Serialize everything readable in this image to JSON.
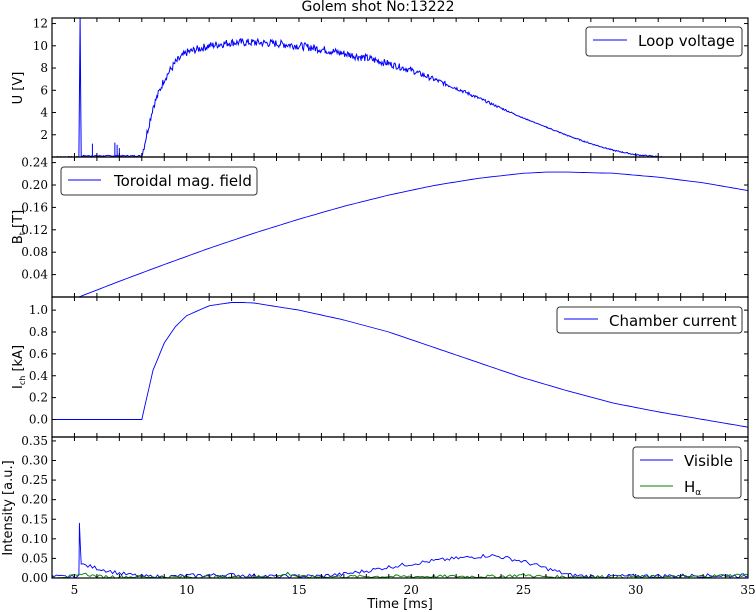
{
  "title": "Golem shot No:13222",
  "xlabel": "Time [ms]",
  "colors": {
    "blue": "#0000ff",
    "green": "#008000",
    "axis": "#000000"
  },
  "chart_data": [
    {
      "type": "line",
      "title": "Golem shot No:13222",
      "ylabel": "U [V]",
      "xlabel": "Time [ms]",
      "xlim": [
        4,
        35
      ],
      "ylim": [
        0,
        12.5
      ],
      "yticks": [
        2,
        4,
        6,
        8,
        10,
        12
      ],
      "legend": {
        "position": "upper right",
        "entries": [
          "Loop voltage"
        ]
      },
      "series": [
        {
          "name": "Loop voltage",
          "color": "#0000ff",
          "x": [
            4,
            5.2,
            5.25,
            5.3,
            6,
            7,
            8.0,
            8.5,
            9,
            9.5,
            10,
            11,
            12,
            13,
            14,
            15,
            16,
            17,
            18,
            19,
            20,
            21,
            22,
            23,
            24,
            25,
            26,
            27,
            28,
            29,
            30,
            31.2
          ],
          "y": [
            0,
            0,
            12.5,
            0.1,
            0.1,
            0.1,
            0.1,
            4.5,
            7.0,
            8.5,
            9.4,
            10.0,
            10.3,
            10.3,
            10.2,
            10.0,
            9.7,
            9.3,
            8.9,
            8.4,
            7.8,
            7.0,
            6.2,
            5.3,
            4.4,
            3.5,
            2.7,
            1.9,
            1.2,
            0.6,
            0.2,
            0.0
          ]
        }
      ]
    },
    {
      "type": "line",
      "ylabel": "B_t [T]",
      "xlim": [
        4,
        35
      ],
      "ylim": [
        0,
        0.25
      ],
      "yticks": [
        0.04,
        0.08,
        0.12,
        0.16,
        0.2,
        0.24
      ],
      "legend": {
        "position": "upper left",
        "entries": [
          "Toroidal mag. field"
        ]
      },
      "series": [
        {
          "name": "Toroidal mag. field",
          "color": "#0000ff",
          "x": [
            5.2,
            7,
            9,
            11,
            13,
            15,
            17,
            19,
            21,
            23,
            25,
            26,
            27,
            29,
            31,
            33,
            35
          ],
          "y": [
            0.0,
            0.028,
            0.058,
            0.087,
            0.114,
            0.139,
            0.162,
            0.182,
            0.199,
            0.212,
            0.221,
            0.223,
            0.223,
            0.221,
            0.214,
            0.204,
            0.19
          ]
        }
      ]
    },
    {
      "type": "line",
      "ylabel": "I_ch [kA]",
      "xlim": [
        4,
        35
      ],
      "ylim": [
        -0.16,
        1.12
      ],
      "yticks": [
        0.0,
        0.2,
        0.4,
        0.6,
        0.8,
        1.0
      ],
      "legend": {
        "position": "upper right",
        "entries": [
          "Chamber current"
        ]
      },
      "series": [
        {
          "name": "Chamber current",
          "color": "#0000ff",
          "x": [
            4,
            8.0,
            8.5,
            9,
            9.5,
            10,
            11,
            12,
            12.5,
            13,
            15,
            17,
            19,
            21,
            23,
            25,
            27,
            29,
            31,
            33,
            35
          ],
          "y": [
            0.0,
            0.0,
            0.45,
            0.7,
            0.85,
            0.95,
            1.04,
            1.07,
            1.07,
            1.065,
            1.0,
            0.91,
            0.8,
            0.66,
            0.52,
            0.38,
            0.26,
            0.15,
            0.07,
            0.0,
            -0.07
          ]
        }
      ]
    },
    {
      "type": "line",
      "ylabel": "Intensity [a.u.]",
      "xlabel": "Time [ms]",
      "xlim": [
        4,
        35
      ],
      "ylim": [
        0,
        0.36
      ],
      "xticks": [
        5,
        10,
        15,
        20,
        25,
        30,
        35
      ],
      "yticks": [
        0.0,
        0.05,
        0.1,
        0.15,
        0.2,
        0.25,
        0.3,
        0.35
      ],
      "legend": {
        "position": "upper right",
        "entries": [
          "Visible",
          "H_alpha"
        ]
      },
      "series": [
        {
          "name": "Visible",
          "color": "#0000ff",
          "x": [
            4,
            5.2,
            5.22,
            5.3,
            6,
            7,
            8,
            9,
            10,
            12,
            14,
            16,
            17,
            18,
            19,
            20,
            21,
            22,
            23,
            23.5,
            24,
            25,
            26,
            27,
            28,
            30,
            32,
            35
          ],
          "y": [
            0.003,
            0.003,
            0.145,
            0.035,
            0.025,
            0.012,
            0.004,
            0.003,
            0.006,
            0.008,
            0.004,
            0.005,
            0.01,
            0.018,
            0.028,
            0.036,
            0.044,
            0.05,
            0.055,
            0.058,
            0.054,
            0.042,
            0.025,
            0.008,
            0.004,
            0.005,
            0.006,
            0.006
          ]
        },
        {
          "name": "H_alpha",
          "color": "#008000",
          "x": [
            4,
            5.2,
            5.3,
            6,
            8,
            10,
            12,
            14,
            14.5,
            15,
            18,
            20,
            22,
            24,
            25,
            26,
            28,
            30,
            32,
            35
          ],
          "y": [
            0.003,
            0.005,
            0.012,
            0.004,
            0.003,
            0.003,
            0.003,
            0.003,
            0.012,
            0.003,
            0.004,
            0.004,
            0.004,
            0.004,
            0.008,
            0.003,
            0.003,
            0.003,
            0.003,
            0.008
          ]
        }
      ]
    }
  ],
  "panels": [
    {
      "ylabel": "U [V]",
      "ytick_labels": [
        "2",
        "4",
        "6",
        "8",
        "10",
        "12"
      ],
      "legend": [
        "Loop voltage"
      ]
    },
    {
      "ylabel_main": "B",
      "ylabel_sub": "t",
      "ylabel_unit": " [T]",
      "ytick_labels": [
        "0.04",
        "0.08",
        "0.12",
        "0.16",
        "0.20",
        "0.24"
      ],
      "legend": [
        "Toroidal mag. field"
      ]
    },
    {
      "ylabel_main": "I",
      "ylabel_sub": "ch",
      "ylabel_unit": " [kA]",
      "ytick_labels": [
        "0.0",
        "0.2",
        "0.4",
        "0.6",
        "0.8",
        "1.0"
      ],
      "legend": [
        "Chamber current"
      ]
    },
    {
      "ylabel": "Intensity [a.u.]",
      "ytick_labels": [
        "0.00",
        "0.05",
        "0.10",
        "0.15",
        "0.20",
        "0.25",
        "0.30",
        "0.35"
      ],
      "legend": [
        "Visible"
      ],
      "legend2_main": "H",
      "legend2_sub": "α"
    }
  ],
  "xtick_labels": [
    "5",
    "10",
    "15",
    "20",
    "25",
    "30",
    "35"
  ]
}
